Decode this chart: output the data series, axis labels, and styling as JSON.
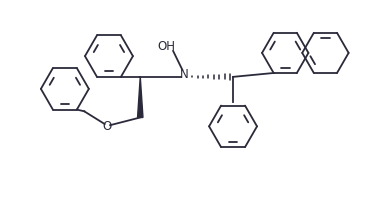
{
  "background_color": "#ffffff",
  "line_color": "#2a2a3a",
  "text_color": "#2a2a3a",
  "figsize": [
    3.88,
    2.07
  ],
  "dpi": 100,
  "xlim": [
    0,
    10
  ],
  "ylim": [
    0,
    5.3
  ]
}
